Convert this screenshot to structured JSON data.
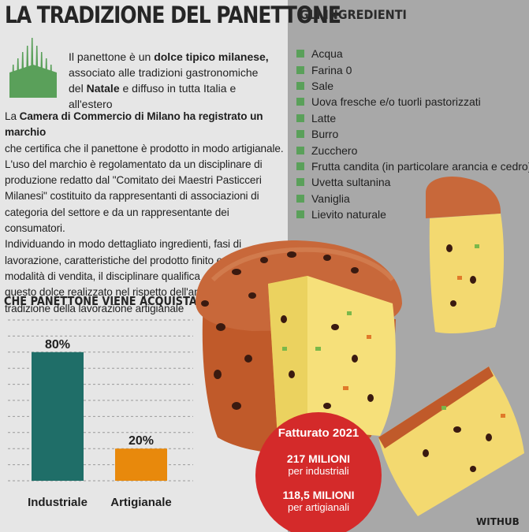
{
  "title": "LA TRADIZIONE DEL PANETTONE",
  "intro": {
    "p1": "Il panettone è un ",
    "p1_bold": "dolce tipico milanese,",
    "p2": "associato alle tradizioni gastronomiche",
    "p3a": "del ",
    "p3_bold": "Natale",
    "p3b": " e diffuso in tutta Italia e all'estero"
  },
  "body": {
    "l1a": "La ",
    "l1_bold": "Camera di Commercio di Milano ha registrato un marchio",
    "lines": [
      "che certifica che il panettone è prodotto in modo artigianale.",
      "L'uso del marchio è regolamentato da un disciplinare di",
      "produzione redatto dal \"Comitato dei Maestri Pasticceri",
      "Milanesi\" costituito da rappresentanti di associazioni di",
      "categoria del settore e da un rappresentante dei consumatori.",
      "Individuando in modo dettagliato ingredienti, fasi di",
      "lavorazione, caratteristiche del prodotto finito e relative",
      "modalità di vendita, il disciplinare qualifica",
      "questo dolce realizzato nel rispetto dell'antica",
      "tradizione della lavorazione artigianale"
    ]
  },
  "ingredients": {
    "title": "GLI INGREDIENTI",
    "items": [
      "Acqua",
      "Farina 0",
      "Sale",
      "Uova fresche e/o tuorli pastorizzati",
      "Latte",
      "Burro",
      "Zucchero",
      "Frutta candita (in particolare arancia e cedro)",
      "Uvetta sultanina",
      "Vaniglia",
      "Lievito naturale"
    ],
    "bullet_color": "#5aa05a"
  },
  "revenue": {
    "title": "Fatturato 2021",
    "value1": "217 MILIONI",
    "caption1": "per industriali",
    "value2": "118,5 MILIONI",
    "caption2": "per artigianali",
    "color": "#d42a2a"
  },
  "brand": "WITHUB",
  "chart_data": {
    "type": "bar",
    "title": "CHE PANETTONE VIENE ACQUISTATO",
    "categories": [
      "Industriale",
      "Artigianale"
    ],
    "values": [
      80,
      20
    ],
    "labels": [
      "80%",
      "20%"
    ],
    "colors": [
      "#1f6e68",
      "#e8890c"
    ],
    "ylim": [
      0,
      100
    ],
    "grid": "horizontal dashed",
    "xlabel": "",
    "ylabel": ""
  }
}
